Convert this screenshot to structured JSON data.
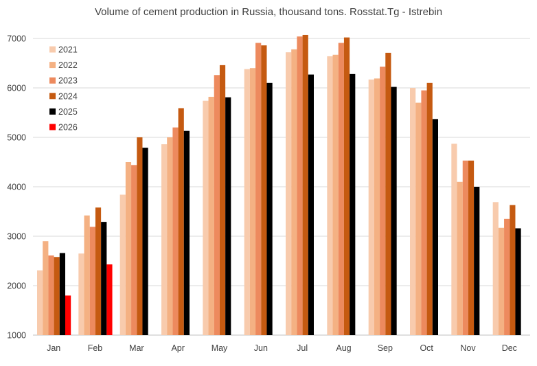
{
  "chart_data": {
    "type": "bar",
    "title": "Volume of cement production in Russia, thousand tons. Rosstat.Tg - Istrebin",
    "xlabel": "",
    "ylabel": "",
    "ylim": [
      1000,
      7000
    ],
    "yticks": [
      1000,
      2000,
      3000,
      4000,
      5000,
      6000,
      7000
    ],
    "grid": true,
    "legend_position": "top-left",
    "categories": [
      "Jan",
      "Feb",
      "Mar",
      "Apr",
      "May",
      "Jun",
      "Jul",
      "Aug",
      "Sep",
      "Oct",
      "Nov",
      "Dec"
    ],
    "series": [
      {
        "name": "2021",
        "color": "#F8CBAD",
        "values": [
          2310,
          2650,
          3840,
          4860,
          5740,
          6380,
          6720,
          6640,
          6170,
          6000,
          4870,
          3690
        ]
      },
      {
        "name": "2022",
        "color": "#F4B183",
        "values": [
          2900,
          3420,
          4500,
          5000,
          5820,
          6400,
          6780,
          6670,
          6190,
          5700,
          4100,
          3170
        ]
      },
      {
        "name": "2023",
        "color": "#ED8A5E",
        "values": [
          2610,
          3190,
          4440,
          5200,
          6260,
          6910,
          7040,
          6910,
          6430,
          5950,
          4530,
          3350
        ]
      },
      {
        "name": "2024",
        "color": "#C55A11",
        "values": [
          2580,
          3580,
          5000,
          5590,
          6460,
          6860,
          7070,
          7020,
          6710,
          6100,
          4530,
          3630
        ]
      },
      {
        "name": "2025",
        "color": "#000000",
        "values": [
          2660,
          3290,
          4790,
          5130,
          5810,
          6100,
          6270,
          6280,
          6020,
          5370,
          4000,
          3160
        ]
      },
      {
        "name": "2026",
        "color": "#FF0000",
        "values": [
          1800,
          2430,
          null,
          null,
          null,
          null,
          null,
          null,
          null,
          null,
          null,
          null
        ]
      }
    ]
  }
}
